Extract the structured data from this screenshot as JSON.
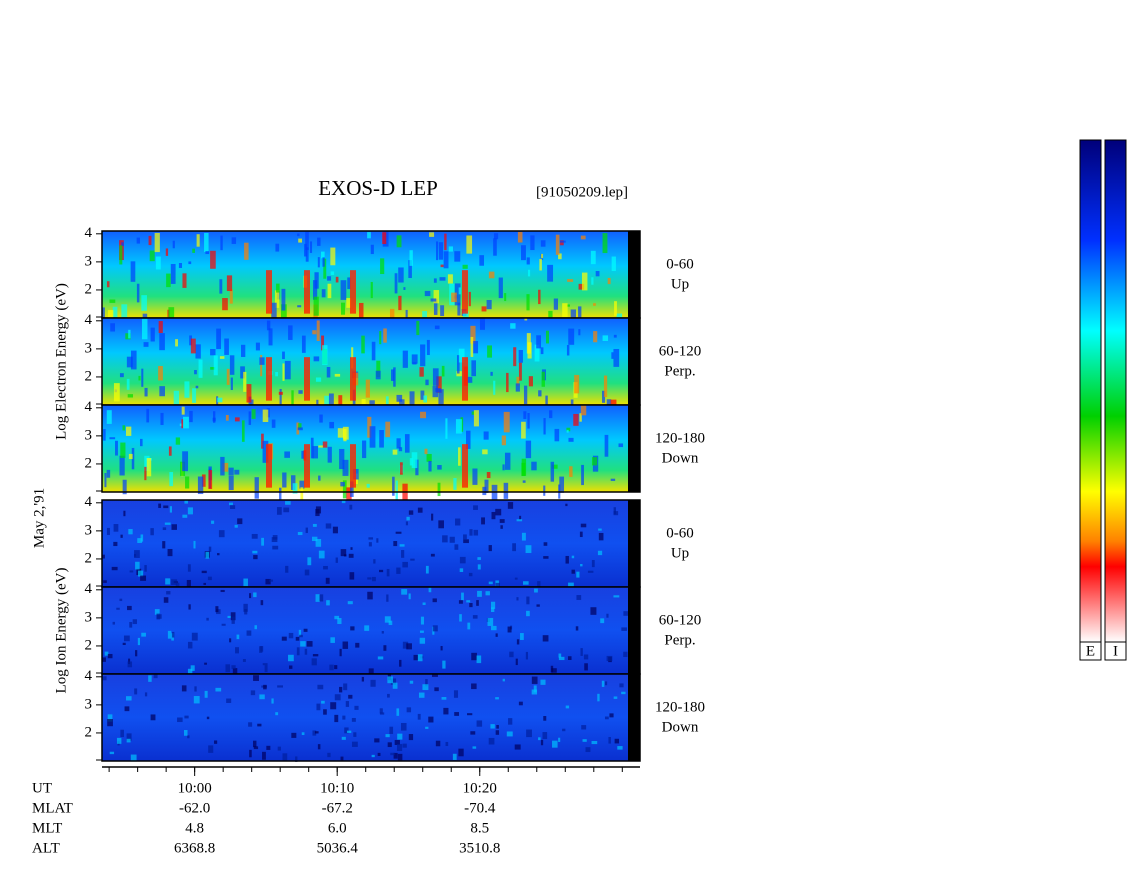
{
  "chart_data": {
    "type": "spectrogram",
    "title": "EXOS-D LEP",
    "subtitle": "[91050209.lep]",
    "date_label": "May  2,'91",
    "xlim": [
      -6.5,
      30.4
    ],
    "xticks": [
      {
        "value": 0,
        "label": "10:00"
      },
      {
        "value": 10,
        "label": "10:10"
      },
      {
        "value": 20,
        "label": "10:20"
      }
    ],
    "ylim": [
      1,
      4.1
    ],
    "yticks": [
      2,
      3,
      4
    ],
    "groups": [
      {
        "ylabel": "Log Electron Energy (eV)",
        "panels": [
          {
            "label": "0-60",
            "sublabel": "Up"
          },
          {
            "label": "60-120",
            "sublabel": "Perp."
          },
          {
            "label": "120-180",
            "sublabel": "Down"
          }
        ]
      },
      {
        "ylabel": "Log Ion Energy (eV)",
        "panels": [
          {
            "label": "0-60",
            "sublabel": "Up"
          },
          {
            "label": "60-120",
            "sublabel": "Perp."
          },
          {
            "label": "120-180",
            "sublabel": "Down"
          }
        ]
      }
    ],
    "ephemeris": [
      {
        "name": "UT"
      },
      {
        "name": "MLAT",
        "values": [
          "-62.0",
          "-67.2",
          "-70.4"
        ]
      },
      {
        "name": "MLT",
        "values": [
          "4.8",
          "6.0",
          "8.5"
        ]
      },
      {
        "name": "ALT",
        "values": [
          "6368.8",
          "5036.4",
          "3510.8"
        ]
      }
    ],
    "colorbars": [
      "E",
      "I"
    ]
  }
}
